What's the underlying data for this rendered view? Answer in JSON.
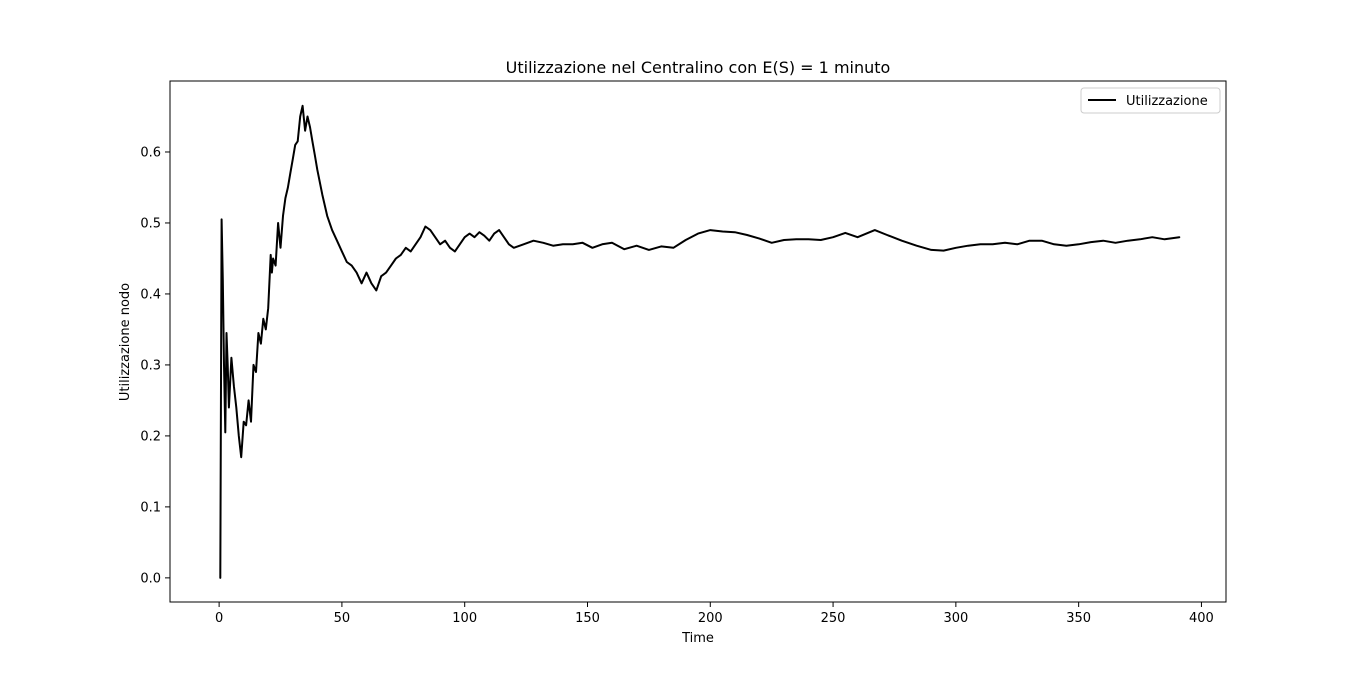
{
  "chart_data": {
    "type": "line",
    "title": "Utilizzazione nel Centralino con E(S) = 1 minuto",
    "xlabel": "Time",
    "ylabel": "Utilizzazione nodo",
    "xlim": [
      -20,
      410
    ],
    "ylim": [
      -0.034,
      0.7
    ],
    "xticks": [
      0,
      50,
      100,
      150,
      200,
      250,
      300,
      350,
      400
    ],
    "yticks": [
      0.0,
      0.1,
      0.2,
      0.3,
      0.4,
      0.5,
      0.6
    ],
    "ytick_labels": [
      "0.0",
      "0.1",
      "0.2",
      "0.3",
      "0.4",
      "0.5",
      "0.6"
    ],
    "grid": false,
    "legend_position": "top-right",
    "series": [
      {
        "name": "Utilizzazione",
        "color": "#000000",
        "x": [
          0.5,
          1,
          1.5,
          2,
          2.5,
          3,
          3.5,
          4,
          5,
          6,
          7,
          8,
          9,
          10,
          11,
          12,
          13,
          14,
          15,
          16,
          17,
          18,
          19,
          20,
          21,
          21.5,
          22,
          23,
          24,
          25,
          26,
          27,
          28,
          29,
          30,
          31,
          32,
          33,
          34,
          35,
          36,
          37,
          38,
          39,
          40,
          42,
          44,
          46,
          48,
          50,
          52,
          54,
          56,
          58,
          60,
          62,
          64,
          66,
          68,
          70,
          72,
          74,
          76,
          78,
          80,
          82,
          84,
          86,
          88,
          90,
          92,
          94,
          96,
          98,
          100,
          102,
          104,
          106,
          108,
          110,
          112,
          114,
          116,
          118,
          120,
          124,
          128,
          132,
          136,
          140,
          144,
          148,
          152,
          156,
          160,
          165,
          170,
          175,
          180,
          185,
          190,
          195,
          200,
          205,
          210,
          215,
          220,
          225,
          230,
          235,
          240,
          245,
          250,
          255,
          260,
          267,
          272,
          278,
          284,
          290,
          295,
          300,
          305,
          310,
          315,
          320,
          325,
          330,
          335,
          340,
          345,
          350,
          355,
          360,
          365,
          370,
          375,
          380,
          385,
          391
        ],
        "y": [
          0.0,
          0.505,
          0.42,
          0.3,
          0.205,
          0.345,
          0.3,
          0.24,
          0.31,
          0.27,
          0.24,
          0.2,
          0.17,
          0.22,
          0.215,
          0.25,
          0.22,
          0.3,
          0.29,
          0.345,
          0.33,
          0.365,
          0.35,
          0.38,
          0.455,
          0.43,
          0.45,
          0.44,
          0.5,
          0.465,
          0.51,
          0.535,
          0.55,
          0.57,
          0.59,
          0.61,
          0.615,
          0.65,
          0.665,
          0.63,
          0.65,
          0.635,
          0.615,
          0.595,
          0.575,
          0.54,
          0.51,
          0.49,
          0.475,
          0.46,
          0.445,
          0.44,
          0.43,
          0.415,
          0.43,
          0.415,
          0.405,
          0.425,
          0.43,
          0.44,
          0.45,
          0.455,
          0.465,
          0.46,
          0.47,
          0.48,
          0.495,
          0.49,
          0.48,
          0.47,
          0.475,
          0.465,
          0.46,
          0.47,
          0.48,
          0.485,
          0.48,
          0.487,
          0.482,
          0.475,
          0.485,
          0.49,
          0.48,
          0.47,
          0.465,
          0.47,
          0.475,
          0.472,
          0.468,
          0.47,
          0.47,
          0.472,
          0.465,
          0.47,
          0.472,
          0.463,
          0.468,
          0.462,
          0.467,
          0.465,
          0.476,
          0.485,
          0.49,
          0.488,
          0.487,
          0.483,
          0.478,
          0.472,
          0.476,
          0.477,
          0.477,
          0.476,
          0.48,
          0.486,
          0.48,
          0.49,
          0.483,
          0.475,
          0.468,
          0.462,
          0.461,
          0.465,
          0.468,
          0.47,
          0.47,
          0.472,
          0.47,
          0.475,
          0.475,
          0.47,
          0.468,
          0.47,
          0.473,
          0.475,
          0.472,
          0.475,
          0.477,
          0.48,
          0.477,
          0.48
        ]
      }
    ]
  }
}
